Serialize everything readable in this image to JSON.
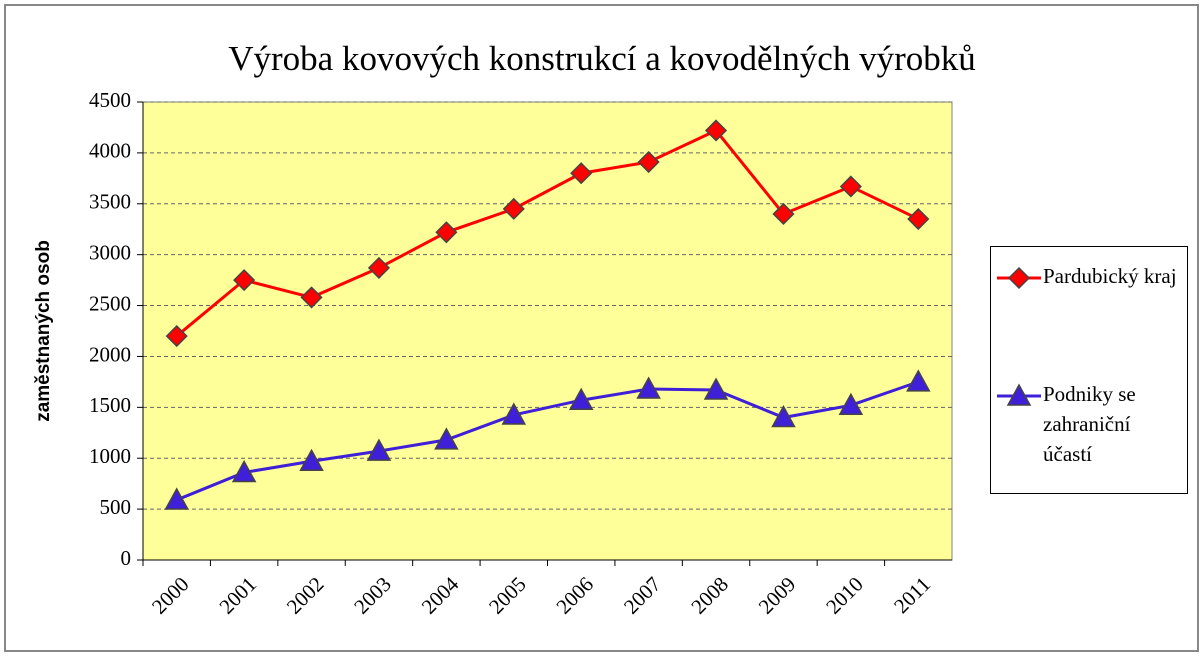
{
  "chart_data": {
    "type": "line",
    "title": "Výroba kovových konstrukcí a kovodělných výrobků",
    "y_label": "zaměstnaných osob",
    "categories": [
      "2000",
      "2001",
      "2002",
      "2003",
      "2004",
      "2005",
      "2006",
      "2007",
      "2008",
      "2009",
      "2010",
      "2011"
    ],
    "series": [
      {
        "name": "Pardubický kraj",
        "color": "#ff0000",
        "marker": "diamond",
        "values": [
          2200,
          2750,
          2580,
          2870,
          3220,
          3450,
          3800,
          3910,
          4220,
          3400,
          3670,
          3350
        ]
      },
      {
        "name": "Podniky se zahraniční účastí",
        "color": "#3f1fd8",
        "marker": "triangle",
        "values": [
          590,
          860,
          970,
          1070,
          1180,
          1425,
          1570,
          1680,
          1670,
          1400,
          1520,
          1750
        ]
      }
    ],
    "ylim": [
      0,
      4500
    ],
    "yticks": [
      0,
      500,
      1000,
      1500,
      2000,
      2500,
      3000,
      3500,
      4000,
      4500
    ],
    "grid": true,
    "legend": "right"
  }
}
